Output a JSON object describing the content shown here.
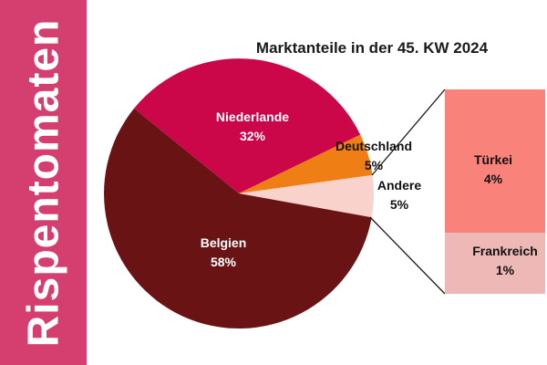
{
  "sidebar": {
    "label": "Rispentomaten",
    "bg_color": "#D43F6F",
    "text_color": "#FFFFFF"
  },
  "chart_data": {
    "type": "pie",
    "title": "Marktanteile in der 45. KW 2024",
    "labels_on_chart": true,
    "legend": "none",
    "start_angle_deg": -51,
    "slices": [
      {
        "label": "Niederlande",
        "value": 32,
        "pct_label": "32%",
        "color": "#CB0649",
        "text_color": "#FFFFFF"
      },
      {
        "label": "Deutschland",
        "value": 5,
        "pct_label": "5%",
        "color": "#EF7E14",
        "text_color": "#111111"
      },
      {
        "label": "Andere",
        "value": 5,
        "pct_label": "5%",
        "color": "#FAD2CC",
        "text_color": "#111111"
      },
      {
        "label": "Belgien",
        "value": 58,
        "pct_label": "58%",
        "color": "#691314",
        "text_color": "#FFFFFF"
      }
    ],
    "breakout_bar": {
      "parent_slice": "Andere",
      "segments": [
        {
          "label": "Türkei",
          "value": 4,
          "pct_label": "4%",
          "color": "#F9837B",
          "height_frac": 0.7
        },
        {
          "label": "Frankreich",
          "value": 1,
          "pct_label": "1%",
          "color": "#EDB8B6",
          "height_frac": 0.3
        }
      ]
    }
  }
}
